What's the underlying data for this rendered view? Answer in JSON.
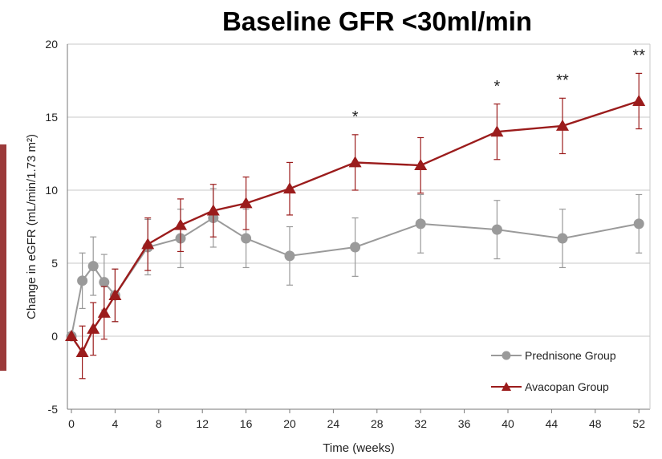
{
  "chart_data": {
    "type": "line",
    "title": "Baseline GFR <30ml/min",
    "xlabel": "Time (weeks)",
    "ylabel": "Change in eGFR (mL/min/1.73 m²)",
    "xlim": [
      0,
      54
    ],
    "ylim": [
      -5,
      20
    ],
    "xticks": [
      0,
      4,
      8,
      12,
      16,
      20,
      24,
      28,
      32,
      36,
      40,
      44,
      48,
      52
    ],
    "yticks": [
      -5,
      0,
      5,
      10,
      15,
      20
    ],
    "grid": "horizontal",
    "legend_position": "bottom-right",
    "series": [
      {
        "name": "Prednisone Group",
        "color": "#9a9a9a",
        "marker": "circle",
        "x": [
          0,
          1,
          2,
          3,
          4,
          7,
          10,
          13,
          16,
          20,
          26,
          32,
          39,
          45,
          52
        ],
        "y": [
          0,
          3.8,
          4.8,
          3.7,
          2.8,
          6.1,
          6.7,
          8.1,
          6.7,
          5.5,
          6.1,
          7.7,
          7.3,
          6.7,
          7.7
        ],
        "err": [
          0,
          1.9,
          2.0,
          1.9,
          1.8,
          1.9,
          2.0,
          2.0,
          2.0,
          2.0,
          2.0,
          2.0,
          2.0,
          2.0,
          2.0
        ]
      },
      {
        "name": "Avacopan Group",
        "color": "#9b1c1c",
        "marker": "triangle",
        "x": [
          0,
          1,
          2,
          3,
          4,
          7,
          10,
          13,
          16,
          20,
          26,
          32,
          39,
          45,
          52
        ],
        "y": [
          0,
          -1.1,
          0.5,
          1.6,
          2.8,
          6.3,
          7.6,
          8.6,
          9.1,
          10.1,
          11.9,
          11.7,
          14.0,
          14.4,
          16.1
        ],
        "err": [
          0,
          1.8,
          1.8,
          1.8,
          1.8,
          1.8,
          1.8,
          1.8,
          1.8,
          1.8,
          1.9,
          1.9,
          1.9,
          1.9,
          1.9
        ]
      }
    ],
    "annotations": [
      {
        "x": 26,
        "y": 15.1,
        "text": "*"
      },
      {
        "x": 39,
        "y": 17.2,
        "text": "*"
      },
      {
        "x": 45,
        "y": 17.6,
        "text": "**"
      },
      {
        "x": 52,
        "y": 19.3,
        "text": "**"
      }
    ],
    "accent_color": "#9b3a3a"
  }
}
